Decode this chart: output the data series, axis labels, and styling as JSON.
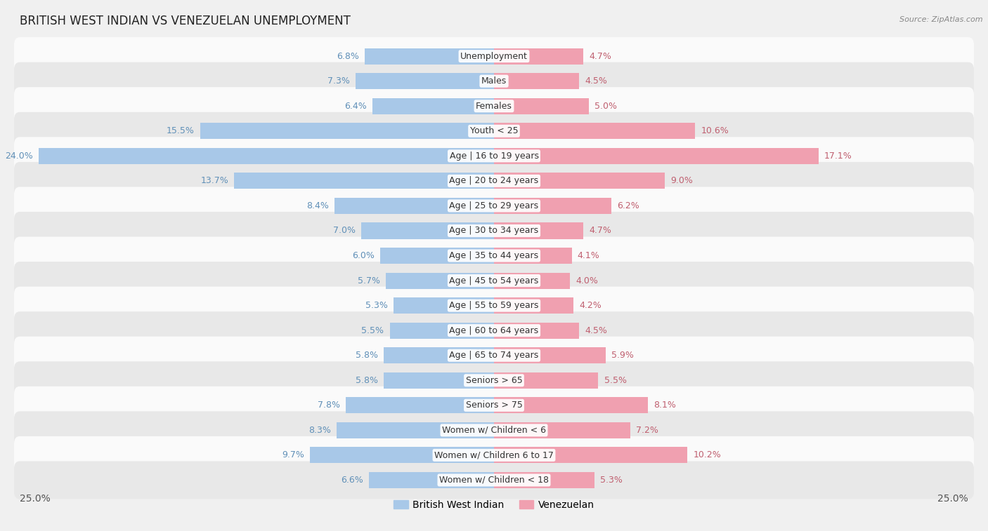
{
  "title": "BRITISH WEST INDIAN VS VENEZUELAN UNEMPLOYMENT",
  "source": "Source: ZipAtlas.com",
  "categories": [
    "Unemployment",
    "Males",
    "Females",
    "Youth < 25",
    "Age | 16 to 19 years",
    "Age | 20 to 24 years",
    "Age | 25 to 29 years",
    "Age | 30 to 34 years",
    "Age | 35 to 44 years",
    "Age | 45 to 54 years",
    "Age | 55 to 59 years",
    "Age | 60 to 64 years",
    "Age | 65 to 74 years",
    "Seniors > 65",
    "Seniors > 75",
    "Women w/ Children < 6",
    "Women w/ Children 6 to 17",
    "Women w/ Children < 18"
  ],
  "british_values": [
    6.8,
    7.3,
    6.4,
    15.5,
    24.0,
    13.7,
    8.4,
    7.0,
    6.0,
    5.7,
    5.3,
    5.5,
    5.8,
    5.8,
    7.8,
    8.3,
    9.7,
    6.6
  ],
  "venezuelan_values": [
    4.7,
    4.5,
    5.0,
    10.6,
    17.1,
    9.0,
    6.2,
    4.7,
    4.1,
    4.0,
    4.2,
    4.5,
    5.9,
    5.5,
    8.1,
    7.2,
    10.2,
    5.3
  ],
  "british_color": "#a8c8e8",
  "venezuelan_color": "#f0a0b0",
  "label_color_british": "#6090b8",
  "label_color_venezuelan": "#c06070",
  "axis_limit": 25.0,
  "bg_color": "#f0f0f0",
  "row_light_color": "#fafafa",
  "row_dark_color": "#e8e8e8",
  "bar_height": 0.65,
  "label_fontsize": 9,
  "category_fontsize": 9,
  "title_fontsize": 12,
  "legend_fontsize": 10
}
